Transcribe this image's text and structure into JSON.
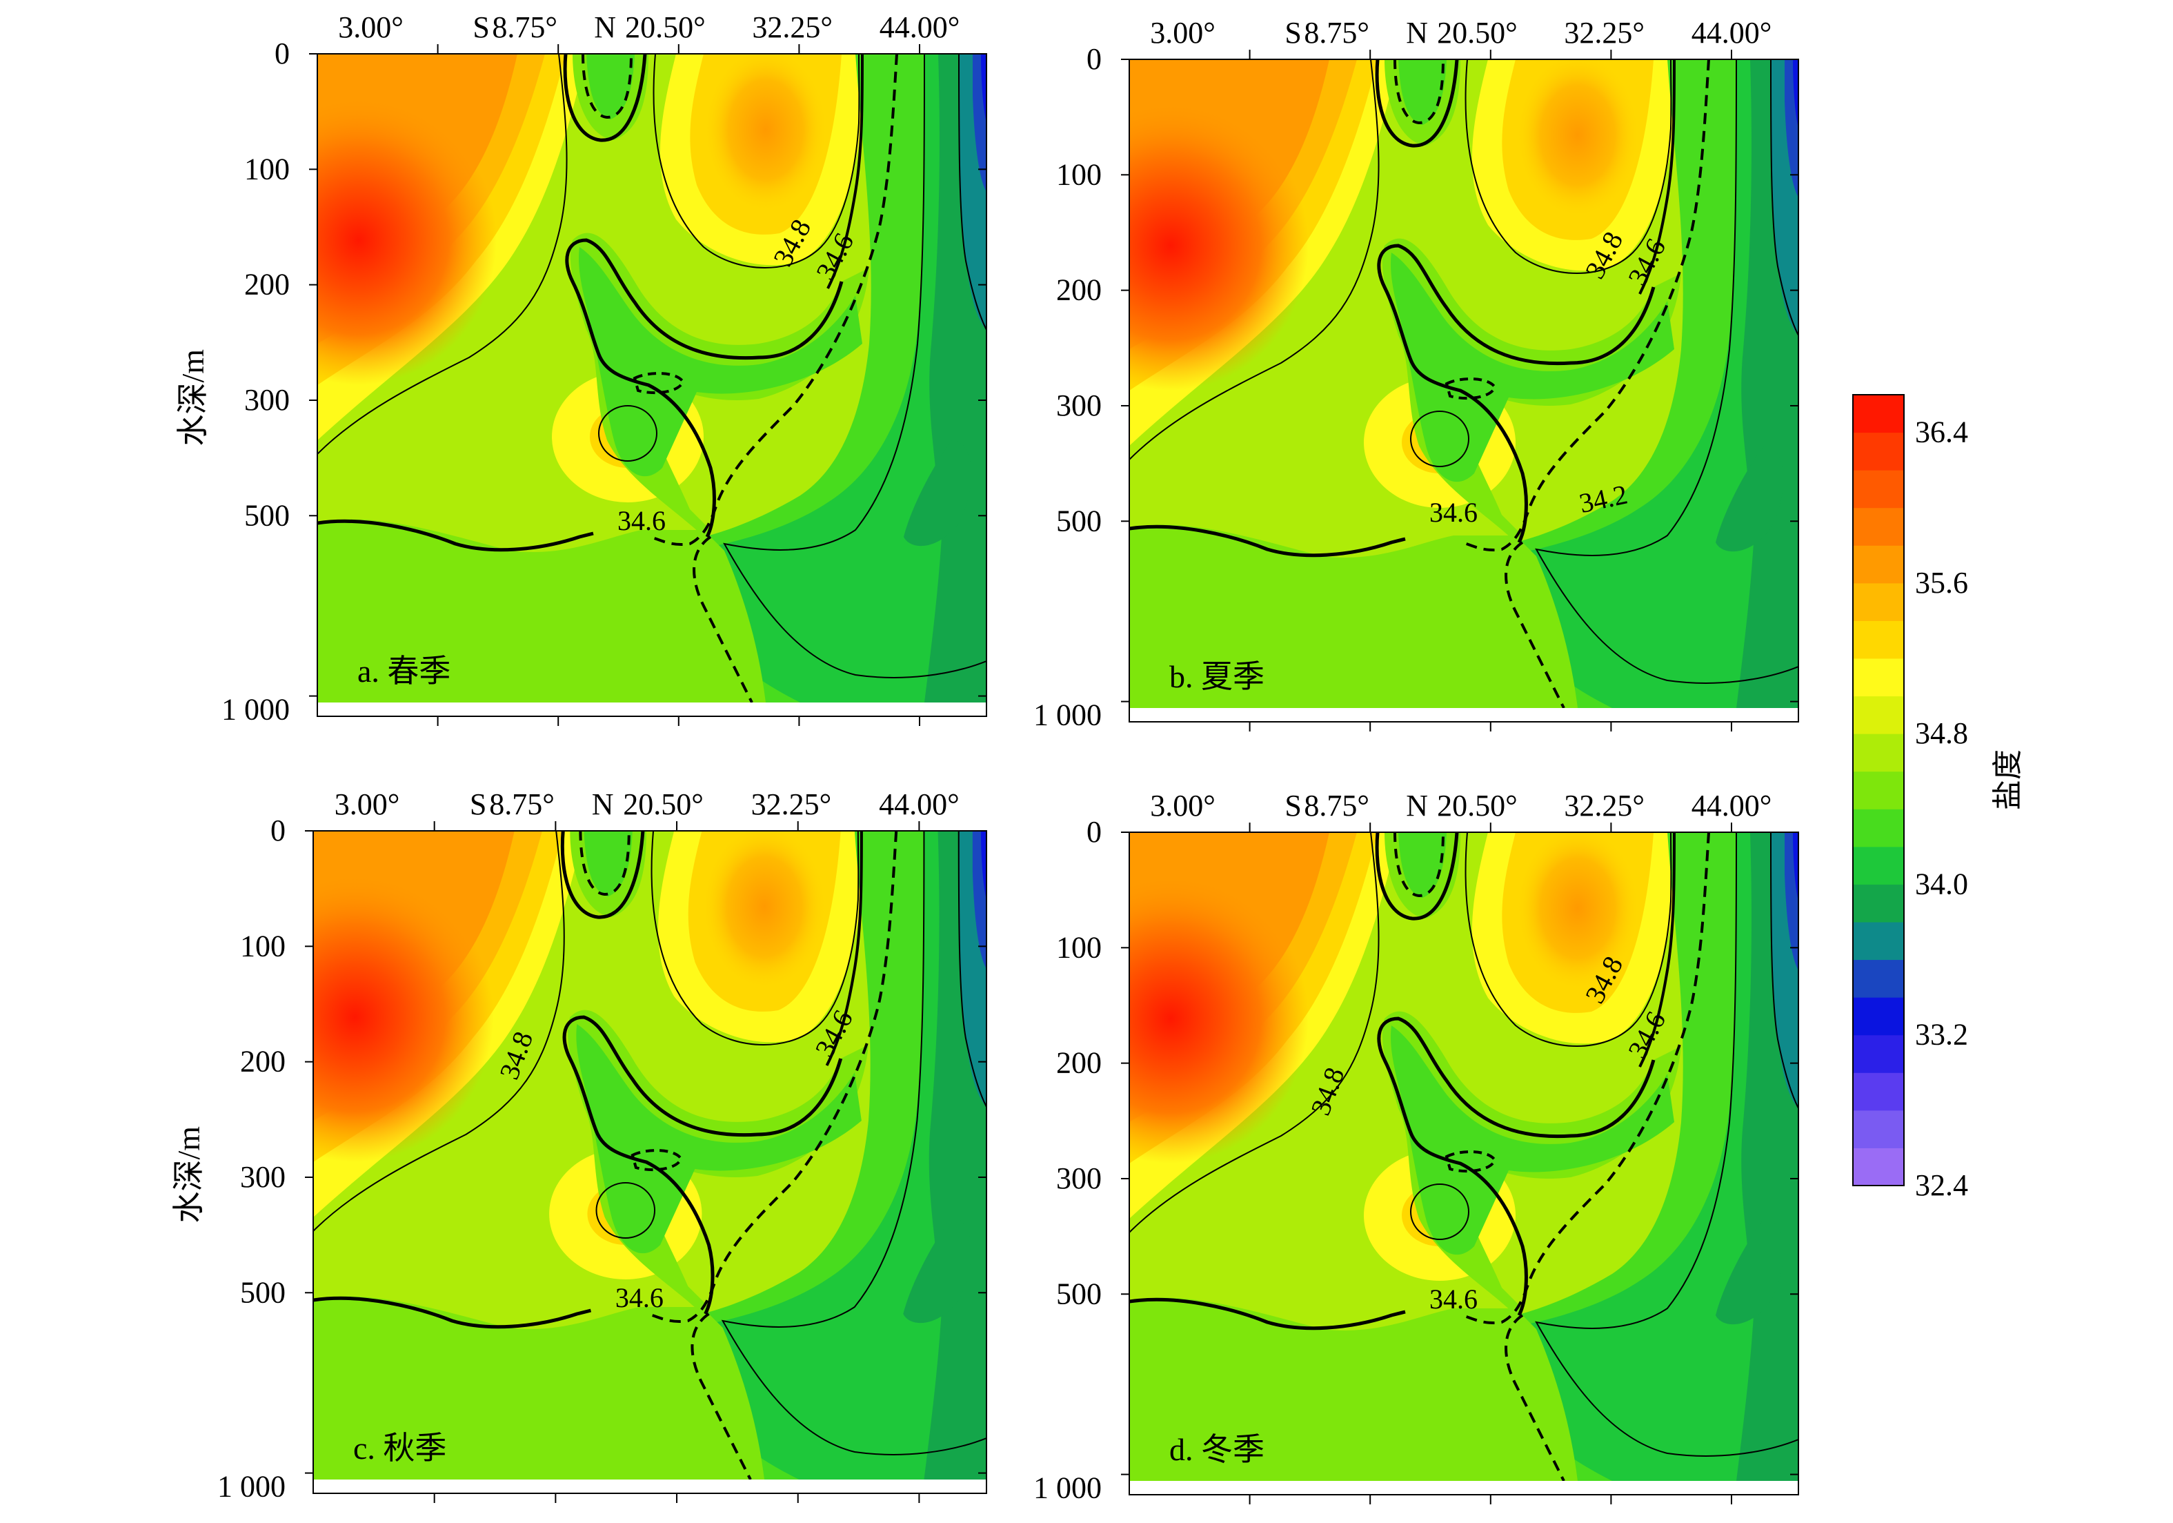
{
  "colorbar": {
    "title": "盐度",
    "tick_labels": [
      "36.4",
      "35.6",
      "34.8",
      "34.0",
      "33.2",
      "32.4"
    ],
    "tick_values": [
      36.4,
      35.6,
      34.8,
      34.0,
      33.2,
      32.4
    ],
    "range": [
      32.4,
      36.6
    ],
    "colors": [
      "#9a6cf5",
      "#7a5bf2",
      "#5a3cf0",
      "#2b20e8",
      "#0a14e0",
      "#1a46c0",
      "#0e8a8a",
      "#14a64a",
      "#1ec83a",
      "#48dc1e",
      "#7ee60c",
      "#aeec08",
      "#dcf20a",
      "#fffa1a",
      "#ffd800",
      "#ffba00",
      "#ff9a00",
      "#ff7a00",
      "#ff5a00",
      "#ff3a00",
      "#ff1800"
    ]
  },
  "chart_data": [
    {
      "type": "heatmap",
      "panel_label": "a. 春季",
      "xtick_labels": [
        "3.00°",
        "S",
        "8.75°",
        "N",
        "20.50°",
        "32.25°",
        "44.00°"
      ],
      "ylabel": "水深/m",
      "ytick_labels": [
        "0",
        "100",
        "200",
        "300",
        "500",
        "1 000"
      ],
      "contour_labels": [
        "34.8",
        "34.6",
        "34.6"
      ]
    },
    {
      "type": "heatmap",
      "panel_label": "b. 夏季",
      "xtick_labels": [
        "3.00°",
        "S",
        "8.75°",
        "N",
        "20.50°",
        "32.25°",
        "44.00°"
      ],
      "ylabel": "",
      "ytick_labels": [
        "0",
        "100",
        "200",
        "300",
        "500",
        "1 000"
      ],
      "contour_labels": [
        "34.8",
        "34.6",
        "34.6",
        "34.2"
      ]
    },
    {
      "type": "heatmap",
      "panel_label": "c. 秋季",
      "xtick_labels": [
        "3.00°",
        "S",
        "8.75°",
        "N",
        "20.50°",
        "32.25°",
        "44.00°"
      ],
      "ylabel": "水深/m",
      "ytick_labels": [
        "0",
        "100",
        "200",
        "300",
        "500",
        "1 000"
      ],
      "contour_labels": [
        "34.8",
        "34.6",
        "34.6"
      ]
    },
    {
      "type": "heatmap",
      "panel_label": "d. 冬季",
      "xtick_labels": [
        "3.00°",
        "S",
        "8.75°",
        "N",
        "20.50°",
        "32.25°",
        "44.00°"
      ],
      "ylabel": "",
      "ytick_labels": [
        "0",
        "100",
        "200",
        "300",
        "500",
        "1 000"
      ],
      "contour_labels": [
        "34.8",
        "34.6",
        "34.8",
        "34.6"
      ]
    }
  ]
}
